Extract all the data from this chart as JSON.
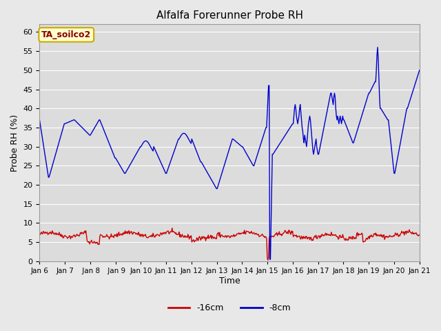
{
  "title": "Alfalfa Forerunner Probe RH",
  "xlabel": "Time",
  "ylabel": "Probe RH (%)",
  "ylim": [
    0,
    62
  ],
  "yticks": [
    0,
    5,
    10,
    15,
    20,
    25,
    30,
    35,
    40,
    45,
    50,
    55,
    60
  ],
  "bg_color": "#e8e8e8",
  "plot_bg_color": "#dcdcdc",
  "line1_color": "#cc0000",
  "line2_color": "#0000cc",
  "legend_label1": "-16cm",
  "legend_label2": "-8cm",
  "annotation_text": "TA_soilco2",
  "annotation_bg": "#ffffcc",
  "annotation_border": "#ccaa00",
  "annotation_text_color": "#880000",
  "x_tick_labels": [
    "Jan 6",
    "Jan 7",
    " Jan 8",
    " Jan 9",
    "Jan 10",
    "Jan 11",
    "Jan 12",
    "Jan 13",
    "Jan 14",
    "Jan 15",
    "Jan 16",
    "Jan 17",
    "Jan 18",
    "Jan 19",
    "Jan 20",
    "Jan 21"
  ],
  "n_points": 600,
  "red_base": 7.0
}
